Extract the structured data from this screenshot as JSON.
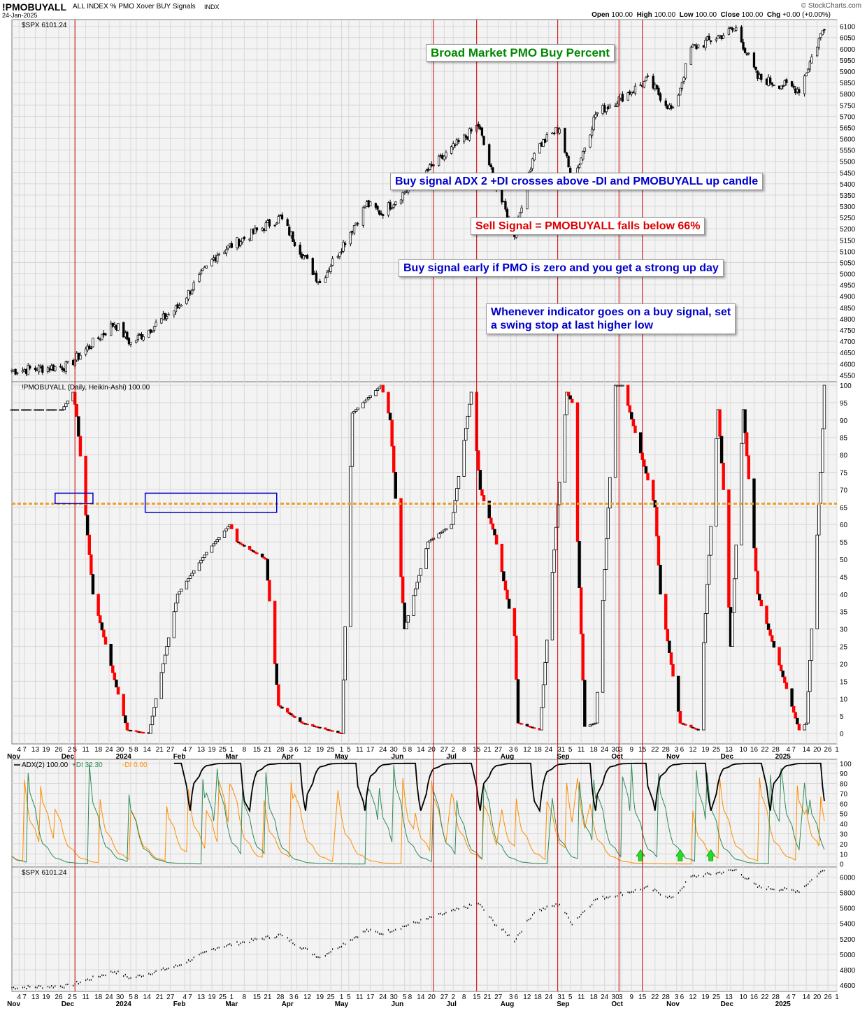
{
  "header": {
    "symbol": "!PMOBUYALL",
    "description": "ALL INDEX % PMO Xover BUY Signals",
    "exchange": "INDX",
    "date": "24-Jan-2025",
    "brand": "© StockCharts.com",
    "ohlc": {
      "open_label": "Open",
      "open": "100.00",
      "high_label": "High",
      "high": "100.00",
      "low_label": "Low",
      "low": "100.00",
      "close_label": "Close",
      "close": "100.00",
      "chg_label": "Chg",
      "chg": "+0.00 (+0.00%)"
    }
  },
  "annotations": {
    "title": "Broad Market PMO Buy Percent",
    "buy_signal": "Buy signal ADX 2 +DI crosses above -DI and PMOBUYALL up candle",
    "sell_signal": "Sell Signal = PMOBUYALL falls below 66%",
    "buy_early": "Buy signal early if PMO is zero and you get a strong up day",
    "swing_stop_1": "Whenever indicator goes on a buy signal, set",
    "swing_stop_2": "a swing stop at last higher low"
  },
  "colors": {
    "up": "#ffffff",
    "down": "#000000",
    "red": "#ff0000",
    "vline": "#cc0000",
    "threshold": "#f0a030",
    "adx": "#000000",
    "plus_di": "#2e8b57",
    "minus_di": "#ff8c00",
    "arrow": "#22dd22",
    "title_text": "#008800",
    "blue_text": "#0000cc",
    "red_text": "#dd0000",
    "grid": "#d8d8d8"
  },
  "chart_data": [
    {
      "type": "candlestick",
      "panel": "price_top",
      "label": "$SPX 6101.24",
      "y_ticks": [
        4550,
        4600,
        4650,
        4700,
        4750,
        4800,
        4850,
        4900,
        4950,
        5000,
        5050,
        5100,
        5150,
        5200,
        5250,
        5300,
        5350,
        5400,
        5450,
        5500,
        5550,
        5600,
        5650,
        5700,
        5750,
        5800,
        5850,
        5900,
        5950,
        6000,
        6050,
        6100
      ],
      "ylim": [
        4520,
        6130
      ],
      "series_anchor_dates": [
        "2023-11-01",
        "2023-12-01",
        "2023-12-27",
        "2024-01-05",
        "2024-01-31",
        "2024-02-22",
        "2024-03-28",
        "2024-04-19",
        "2024-05-15",
        "2024-05-23",
        "2024-06-14",
        "2024-07-16",
        "2024-07-25",
        "2024-08-05",
        "2024-08-16",
        "2024-08-30",
        "2024-09-06",
        "2024-09-19",
        "2024-10-18",
        "2024-11-01",
        "2024-11-11",
        "2024-12-06",
        "2024-12-18",
        "2025-01-10",
        "2025-01-24"
      ],
      "series_anchor_closes": [
        4570,
        4590,
        4780,
        4690,
        4850,
        5090,
        5250,
        4960,
        5310,
        5270,
        5430,
        5660,
        5400,
        5180,
        5550,
        5650,
        5400,
        5710,
        5860,
        5720,
        6000,
        6090,
        5870,
        5820,
        6101.24
      ]
    },
    {
      "type": "heikin-ashi",
      "panel": "pmobuyall",
      "label": "!PMOBUYALL (Daily, Heikin-Ashi) 100.00",
      "y_ticks": [
        0,
        5,
        10,
        15,
        20,
        25,
        30,
        35,
        40,
        45,
        50,
        55,
        60,
        65,
        70,
        75,
        80,
        85,
        90,
        95,
        100
      ],
      "ylim": [
        -3,
        101
      ],
      "threshold": 66,
      "series_anchor_dates": [
        "2023-11-01",
        "2023-11-03",
        "2023-11-28",
        "2023-12-04",
        "2023-12-06",
        "2023-12-15",
        "2024-01-03",
        "2024-01-15",
        "2024-01-31",
        "2024-02-16",
        "2024-02-29",
        "2024-03-04",
        "2024-03-20",
        "2024-03-27",
        "2024-04-09",
        "2024-05-01",
        "2024-05-07",
        "2024-05-23",
        "2024-05-28",
        "2024-06-05",
        "2024-06-18",
        "2024-07-01",
        "2024-07-12",
        "2024-07-17",
        "2024-07-25",
        "2024-08-05",
        "2024-08-07",
        "2024-08-19",
        "2024-09-03",
        "2024-09-06",
        "2024-09-13",
        "2024-09-19",
        "2024-09-30",
        "2024-10-04",
        "2024-10-22",
        "2024-10-25",
        "2024-11-05",
        "2024-11-15",
        "2024-11-26",
        "2024-11-29",
        "2024-12-03",
        "2024-12-10",
        "2024-12-18",
        "2025-01-10",
        "2025-01-14",
        "2025-01-22",
        "2025-01-24"
      ],
      "series_anchor_closes": [
        93,
        93,
        93,
        98,
        91,
        40,
        1,
        0,
        40,
        52,
        60,
        55,
        50,
        8,
        3,
        0,
        92,
        100,
        90,
        30,
        55,
        60,
        98,
        70,
        57,
        28,
        3,
        1,
        98,
        95,
        2,
        3,
        100,
        100,
        65,
        40,
        3,
        1,
        93,
        70,
        25,
        93,
        40,
        1,
        3,
        75,
        100
      ]
    },
    {
      "type": "line",
      "panel": "adx",
      "label_adx": "ADX(2) 100.00",
      "label_plus": "+DI 32.30",
      "label_minus": "-DI 0.00",
      "y_ticks": [
        0,
        10,
        20,
        30,
        40,
        50,
        60,
        70,
        80,
        90,
        100
      ],
      "ylim": [
        -3,
        104
      ],
      "signal_arrows": [
        "2024-10-14",
        "2024-11-05",
        "2024-11-22"
      ]
    },
    {
      "type": "line",
      "panel": "price_bottom",
      "label": "$SPX 6101.24",
      "y_ticks": [
        4600,
        4800,
        5000,
        5200,
        5400,
        5600,
        5800,
        6000
      ],
      "ylim": [
        4520,
        6130
      ]
    }
  ],
  "x_axis": {
    "start_date": "2023-10-31",
    "end_date": "2025-01-31",
    "tick_labels": [
      {
        "d": "2023-11-04",
        "t": "4"
      },
      {
        "d": "2023-11-07",
        "t": "7"
      },
      {
        "d": "2023-11-13",
        "t": "13"
      },
      {
        "d": "2023-11-19",
        "t": "19"
      },
      {
        "d": "2023-11-26",
        "t": "26"
      },
      {
        "d": "2023-12-02",
        "t": "2"
      },
      {
        "d": "2023-12-05",
        "t": "5"
      },
      {
        "d": "2023-12-11",
        "t": "11"
      },
      {
        "d": "2023-12-18",
        "t": "18"
      },
      {
        "d": "2023-12-24",
        "t": "24"
      },
      {
        "d": "2023-12-30",
        "t": "30"
      },
      {
        "d": "2024-01-05",
        "t": "5"
      },
      {
        "d": "2024-01-08",
        "t": "8"
      },
      {
        "d": "2024-01-14",
        "t": "14"
      },
      {
        "d": "2024-01-21",
        "t": "21"
      },
      {
        "d": "2024-01-27",
        "t": "27"
      },
      {
        "d": "2024-02-04",
        "t": "4"
      },
      {
        "d": "2024-02-07",
        "t": "7"
      },
      {
        "d": "2024-02-13",
        "t": "13"
      },
      {
        "d": "2024-02-19",
        "t": "19"
      },
      {
        "d": "2024-02-25",
        "t": "25"
      },
      {
        "d": "2024-03-01",
        "t": "1"
      },
      {
        "d": "2024-03-08",
        "t": "8"
      },
      {
        "d": "2024-03-15",
        "t": "15"
      },
      {
        "d": "2024-03-21",
        "t": "21"
      },
      {
        "d": "2024-03-28",
        "t": "28"
      },
      {
        "d": "2024-04-03",
        "t": "3"
      },
      {
        "d": "2024-04-06",
        "t": "6"
      },
      {
        "d": "2024-04-12",
        "t": "12"
      },
      {
        "d": "2024-04-19",
        "t": "19"
      },
      {
        "d": "2024-04-25",
        "t": "25"
      },
      {
        "d": "2024-05-01",
        "t": "1"
      },
      {
        "d": "2024-05-05",
        "t": "5"
      },
      {
        "d": "2024-05-11",
        "t": "11"
      },
      {
        "d": "2024-05-17",
        "t": "17"
      },
      {
        "d": "2024-05-24",
        "t": "24"
      },
      {
        "d": "2024-05-30",
        "t": "30"
      },
      {
        "d": "2024-06-05",
        "t": "5"
      },
      {
        "d": "2024-06-08",
        "t": "8"
      },
      {
        "d": "2024-06-14",
        "t": "14"
      },
      {
        "d": "2024-06-20",
        "t": "20"
      },
      {
        "d": "2024-06-27",
        "t": "27"
      },
      {
        "d": "2024-07-02",
        "t": "2"
      },
      {
        "d": "2024-07-08",
        "t": "8"
      },
      {
        "d": "2024-07-15",
        "t": "15"
      },
      {
        "d": "2024-07-21",
        "t": "21"
      },
      {
        "d": "2024-07-27",
        "t": "27"
      },
      {
        "d": "2024-08-03",
        "t": "3"
      },
      {
        "d": "2024-08-06",
        "t": "6"
      },
      {
        "d": "2024-08-12",
        "t": "12"
      },
      {
        "d": "2024-08-18",
        "t": "18"
      },
      {
        "d": "2024-08-24",
        "t": "24"
      },
      {
        "d": "2024-08-31",
        "t": "31"
      },
      {
        "d": "2024-09-05",
        "t": "5"
      },
      {
        "d": "2024-09-11",
        "t": "11"
      },
      {
        "d": "2024-09-18",
        "t": "18"
      },
      {
        "d": "2024-09-24",
        "t": "24"
      },
      {
        "d": "2024-09-30",
        "t": "30"
      },
      {
        "d": "2024-10-03",
        "t": "3"
      },
      {
        "d": "2024-10-09",
        "t": "9"
      },
      {
        "d": "2024-10-15",
        "t": "15"
      },
      {
        "d": "2024-10-22",
        "t": "22"
      },
      {
        "d": "2024-10-28",
        "t": "28"
      },
      {
        "d": "2024-11-03",
        "t": "3"
      },
      {
        "d": "2024-11-06",
        "t": "6"
      },
      {
        "d": "2024-11-12",
        "t": "12"
      },
      {
        "d": "2024-11-19",
        "t": "19"
      },
      {
        "d": "2024-11-25",
        "t": "25"
      },
      {
        "d": "2024-12-01",
        "t": "1"
      },
      {
        "d": "2024-12-03",
        "t": "3"
      },
      {
        "d": "2024-12-10",
        "t": "10"
      },
      {
        "d": "2024-12-16",
        "t": "16"
      },
      {
        "d": "2024-12-22",
        "t": "22"
      },
      {
        "d": "2024-12-28",
        "t": "28"
      },
      {
        "d": "2025-01-04",
        "t": "4"
      },
      {
        "d": "2025-01-07",
        "t": "7"
      },
      {
        "d": "2025-01-14",
        "t": "14"
      },
      {
        "d": "2025-01-20",
        "t": "20"
      },
      {
        "d": "2025-01-26",
        "t": "26"
      },
      {
        "d": "2025-01-31",
        "t": "1"
      }
    ],
    "month_labels": [
      {
        "d": "2023-11-01",
        "t": "Nov"
      },
      {
        "d": "2023-12-01",
        "t": "Dec"
      },
      {
        "d": "2024-01-01",
        "t": "2024"
      },
      {
        "d": "2024-02-01",
        "t": "Feb"
      },
      {
        "d": "2024-03-01",
        "t": "Mar"
      },
      {
        "d": "2024-04-01",
        "t": "Apr"
      },
      {
        "d": "2024-05-01",
        "t": "May"
      },
      {
        "d": "2024-06-01",
        "t": "Jun"
      },
      {
        "d": "2024-07-01",
        "t": "Jul"
      },
      {
        "d": "2024-08-01",
        "t": "Aug"
      },
      {
        "d": "2024-09-01",
        "t": "Sep"
      },
      {
        "d": "2024-10-01",
        "t": "Oct"
      },
      {
        "d": "2024-11-01",
        "t": "Nov"
      },
      {
        "d": "2024-12-01",
        "t": "Dec"
      },
      {
        "d": "2025-01-01",
        "t": "2025"
      }
    ],
    "signal_lines": [
      "2023-12-05",
      "2024-06-21",
      "2024-07-15",
      "2024-08-29",
      "2024-10-02",
      "2024-10-15"
    ]
  }
}
